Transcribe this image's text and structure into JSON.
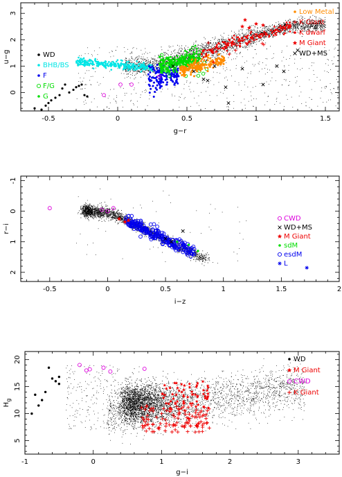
{
  "chart_data": [
    {
      "type": "scatter",
      "xlabel": "g−r",
      "ylabel": "u−g",
      "xlim": [
        -0.7,
        1.6
      ],
      "ylim": [
        3.4,
        -0.7
      ],
      "xticks": [
        "-0.5",
        "0",
        "0.5",
        "1",
        "1.5"
      ],
      "xtick_values": [
        -0.5,
        0,
        0.5,
        1,
        1.5
      ],
      "yticks": [
        "0",
        "1",
        "2",
        "3"
      ],
      "ytick_values": [
        0,
        1,
        2,
        3
      ],
      "legend_left": [
        {
          "label": "WD",
          "color": "#000000",
          "marker": "dot"
        },
        {
          "label": "BHB/BS",
          "color": "#00e5e5",
          "marker": "dot"
        },
        {
          "label": "F",
          "color": "#0000ee",
          "marker": "dot"
        },
        {
          "label": "F/G",
          "color": "#00dd00",
          "marker": "ring"
        },
        {
          "label": "G",
          "color": "#00dd00",
          "marker": "dot"
        }
      ],
      "legend_right": [
        {
          "label": "Low Metal",
          "color": "#ff8c00",
          "marker": "dot"
        },
        {
          "label": "K Giant",
          "color": "#ee0000",
          "marker": "plus"
        },
        {
          "label": "K dwarf",
          "color": "#ee0000",
          "marker": "dot"
        },
        {
          "label": "M Giant",
          "color": "#ee0000",
          "marker": "star"
        },
        {
          "label": "WD+MS",
          "color": "#000000",
          "marker": "cross"
        }
      ],
      "series": [
        {
          "name": "WD",
          "x": [
            -0.6,
            -0.55,
            -0.52,
            -0.5,
            -0.48,
            -0.45,
            -0.42,
            -0.4,
            -0.38,
            -0.35,
            -0.32,
            -0.3,
            -0.28,
            -0.26,
            -0.24,
            -0.22
          ],
          "y": [
            -0.6,
            -0.65,
            -0.5,
            -0.4,
            -0.3,
            -0.2,
            -0.1,
            0.15,
            0.3,
            0.0,
            0.1,
            0.2,
            0.25,
            0.3,
            -0.1,
            -0.15
          ]
        },
        {
          "name": "WD+MS",
          "x": [
            0.55,
            0.62,
            0.7,
            0.78,
            0.8,
            0.9,
            1.05,
            1.15,
            1.2,
            1.3,
            0.4,
            0.65
          ],
          "y": [
            0.8,
            0.5,
            1.0,
            0.2,
            -0.4,
            0.9,
            0.3,
            1.0,
            0.8,
            1.6,
            1.0,
            0.45
          ]
        },
        {
          "name": "M Giant",
          "x": [
            0.9,
            0.92,
            0.95,
            1.0,
            1.05
          ],
          "y": [
            2.5,
            2.75,
            2.45,
            2.6,
            2.55
          ]
        }
      ]
    },
    {
      "type": "scatter",
      "xlabel": "i−z",
      "ylabel": "r−i",
      "xlim": [
        -0.75,
        2.0
      ],
      "ylim": [
        -1.15,
        2.3
      ],
      "xticks": [
        "-0.5",
        "0",
        "0.5",
        "1",
        "1.5",
        "2"
      ],
      "xtick_values": [
        -0.5,
        0,
        0.5,
        1,
        1.5,
        2
      ],
      "yticks": [
        "-1",
        "0",
        "1",
        "2"
      ],
      "ytick_values": [
        -1,
        0,
        1,
        2
      ],
      "legend": [
        {
          "label": "CWD",
          "color": "#dd00dd",
          "marker": "ring"
        },
        {
          "label": "WD+MS",
          "color": "#000000",
          "marker": "cross"
        },
        {
          "label": "M Giant",
          "color": "#ee0000",
          "marker": "star"
        },
        {
          "label": "sdM",
          "color": "#00dd00",
          "marker": "dot"
        },
        {
          "label": "esdM",
          "color": "#0000ee",
          "marker": "ring"
        },
        {
          "label": "L",
          "color": "#0000ee",
          "marker": "asterisk"
        }
      ],
      "series": [
        {
          "name": "CWD",
          "x": [
            -0.5,
            -0.05,
            0.0,
            0.05
          ],
          "y": [
            -0.1,
            -0.05,
            0.0,
            -0.1
          ]
        },
        {
          "name": "WD+MS",
          "x": [
            0.65,
            0.5,
            0.55
          ],
          "y": [
            0.65,
            0.9,
            1.0
          ]
        },
        {
          "name": "M Giant",
          "x": [
            0.1,
            0.15,
            0.18
          ],
          "y": [
            0.25,
            0.35,
            0.3
          ]
        },
        {
          "name": "sdM",
          "x": [
            0.7,
            0.78,
            0.6
          ],
          "y": [
            1.1,
            1.3,
            1.0
          ]
        },
        {
          "name": "L",
          "x": [
            1.72
          ],
          "y": [
            1.85
          ]
        }
      ]
    },
    {
      "type": "scatter",
      "xlabel": "g−i",
      "ylabel": "H_g",
      "xlim": [
        -1.0,
        3.6
      ],
      "ylim": [
        21.5,
        2.5
      ],
      "xticks": [
        "-1",
        "0",
        "1",
        "2",
        "3"
      ],
      "xtick_values": [
        -1,
        0,
        1,
        2,
        3
      ],
      "yticks": [
        "5",
        "10",
        "15",
        "20"
      ],
      "ytick_values": [
        5,
        10,
        15,
        20
      ],
      "legend": [
        {
          "label": "WD",
          "color": "#000000",
          "marker": "dot"
        },
        {
          "label": "M Giant",
          "color": "#ee0000",
          "marker": "star"
        },
        {
          "label": "CWD",
          "color": "#dd00dd",
          "marker": "ring"
        },
        {
          "label": "K Giant",
          "color": "#ee0000",
          "marker": "plus"
        }
      ],
      "series": [
        {
          "name": "WD",
          "x": [
            -0.9,
            -0.85,
            -0.8,
            -0.75,
            -0.7,
            -0.65,
            -0.6,
            -0.55,
            -0.5,
            -0.5
          ],
          "y": [
            10.0,
            13.5,
            11.5,
            12.5,
            14.0,
            18.5,
            16.5,
            16.0,
            15.5,
            16.8
          ]
        },
        {
          "name": "CWD",
          "x": [
            -0.2,
            -0.1,
            -0.05,
            0.15,
            0.25,
            0.75
          ],
          "y": [
            19.0,
            18.0,
            18.2,
            18.5,
            17.8,
            18.3
          ]
        },
        {
          "name": "K Giant",
          "x": [
            0.8,
            1.0,
            1.2,
            1.4,
            1.6
          ],
          "y": [
            8.0,
            10.0,
            7.0,
            9.0,
            7.5
          ]
        }
      ]
    }
  ]
}
